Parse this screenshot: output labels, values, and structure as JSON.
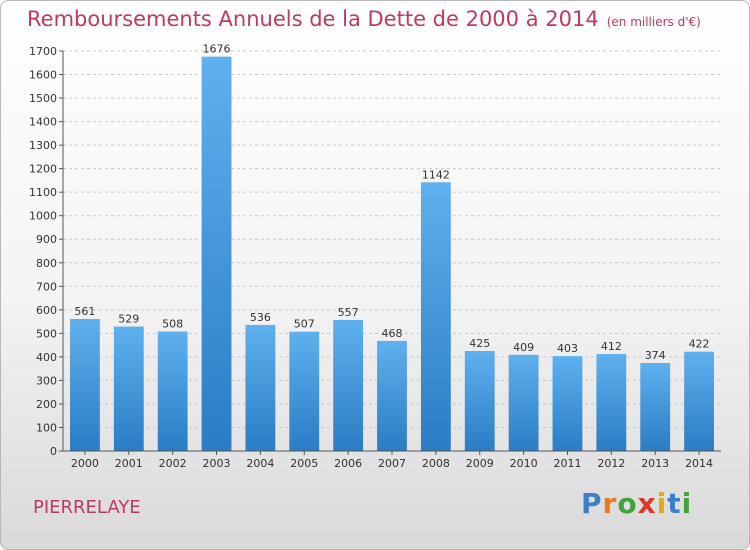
{
  "title": "Remboursements Annuels de la Dette de 2000 à 2014",
  "unit": "(en milliers d'€)",
  "town": "PIERRELAYE",
  "logo": "Proxiti",
  "colors": {
    "bar": "#5aa9e6",
    "bar_dark": "#2a7dc4",
    "title": "#c0395f"
  },
  "chart_data": {
    "type": "bar",
    "title": "Remboursements Annuels de la Dette de 2000 à 2014",
    "categories": [
      "2000",
      "2001",
      "2002",
      "2003",
      "2004",
      "2005",
      "2006",
      "2007",
      "2008",
      "2009",
      "2010",
      "2011",
      "2012",
      "2013",
      "2014"
    ],
    "values": [
      561,
      529,
      508,
      1676,
      536,
      507,
      557,
      468,
      1142,
      425,
      409,
      403,
      412,
      374,
      422
    ],
    "ylim": [
      0,
      1700
    ],
    "yticks": [
      0,
      100,
      200,
      300,
      400,
      500,
      600,
      700,
      800,
      900,
      1000,
      1100,
      1200,
      1300,
      1400,
      1500,
      1600,
      1700
    ],
    "grid": true,
    "legend": "none"
  }
}
